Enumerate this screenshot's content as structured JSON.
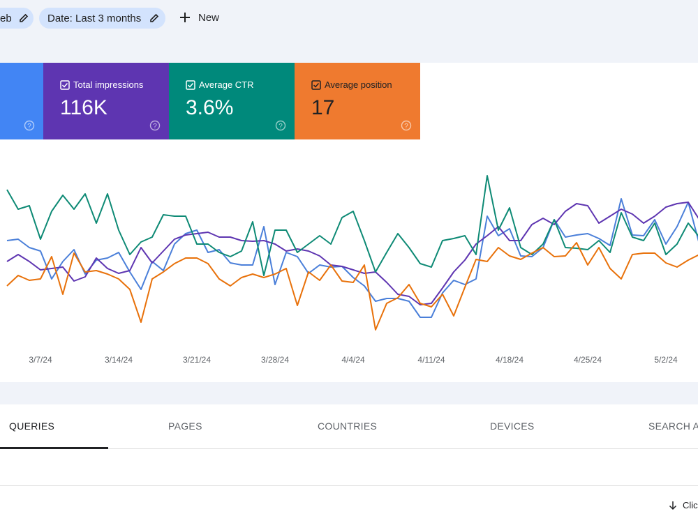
{
  "filters": [
    "eb",
    "Date: Last 3 months"
  ],
  "new_button": "New",
  "metrics": [
    {
      "label": "Total impressions",
      "value": "116K"
    },
    {
      "label": "Average CTR",
      "value": "3.6%"
    },
    {
      "label": "Average position",
      "value": "17"
    }
  ],
  "chart_data": {
    "type": "line",
    "categories": [
      null,
      null,
      null,
      "3/7/24",
      null,
      null,
      null,
      null,
      null,
      null,
      "3/14/24",
      null,
      null,
      null,
      null,
      null,
      null,
      "3/21/24",
      null,
      null,
      null,
      null,
      null,
      null,
      "3/28/24",
      null,
      null,
      null,
      null,
      null,
      null,
      "4/4/24",
      null,
      null,
      null,
      null,
      null,
      null,
      "4/11/24",
      null,
      null,
      null,
      null,
      null,
      null,
      "4/18/24",
      null,
      null,
      null,
      null,
      null,
      null,
      "4/25/24",
      null,
      null,
      null,
      null,
      null,
      null,
      "5/2/24",
      null,
      null,
      null
    ],
    "ylim": [
      0,
      270
    ],
    "series": [
      {
        "color": "#4a7fd9",
        "values": [
          155,
          157,
          145,
          140,
          100,
          125,
          142,
          107,
          127,
          130,
          138,
          110,
          85,
          125,
          112,
          150,
          165,
          170,
          138,
          142,
          123,
          120,
          120,
          175,
          92,
          138,
          132,
          108,
          120,
          117,
          118,
          102,
          90,
          68,
          72,
          72,
          68,
          45,
          45,
          80,
          98,
          92,
          100,
          190,
          162,
          172,
          133,
          132,
          145,
          185,
          160,
          163,
          165,
          158,
          148,
          215,
          163,
          162,
          185,
          150,
          175,
          210,
          150
        ]
      },
      {
        "color": "#5e35b1",
        "values": [
          125,
          135,
          125,
          113,
          115,
          117,
          97,
          103,
          130,
          115,
          108,
          112,
          145,
          123,
          140,
          157,
          163,
          165,
          167,
          160,
          160,
          155,
          154,
          155,
          150,
          140,
          143,
          140,
          133,
          120,
          118,
          113,
          108,
          110,
          95,
          78,
          75,
          63,
          65,
          87,
          110,
          127,
          150,
          162,
          175,
          155,
          155,
          178,
          187,
          178,
          197,
          208,
          205,
          180,
          190,
          200,
          193,
          180,
          190,
          203,
          208,
          210,
          185
        ]
      },
      {
        "color": "#0e8a75",
        "values": [
          228,
          200,
          205,
          157,
          197,
          220,
          200,
          222,
          180,
          222,
          170,
          135,
          153,
          160,
          192,
          190,
          190,
          150,
          150,
          138,
          132,
          140,
          182,
          105,
          170,
          170,
          138,
          150,
          162,
          150,
          188,
          197,
          155,
          110,
          138,
          165,
          145,
          122,
          117,
          155,
          158,
          162,
          135,
          248,
          170,
          202,
          145,
          135,
          150,
          185,
          145,
          144,
          142,
          155,
          138,
          195,
          160,
          155,
          180,
          135,
          150,
          180,
          160
        ]
      },
      {
        "color": "#e8710a",
        "values": [
          90,
          105,
          98,
          100,
          132,
          78,
          137,
          110,
          112,
          107,
          100,
          85,
          38,
          100,
          110,
          122,
          130,
          130,
          122,
          100,
          90,
          102,
          107,
          102,
          107,
          115,
          62,
          110,
          98,
          120,
          97,
          95,
          120,
          27,
          65,
          73,
          92,
          65,
          60,
          78,
          47,
          88,
          128,
          125,
          145,
          133,
          128,
          137,
          145,
          132,
          133,
          152,
          120,
          145,
          115,
          100,
          135,
          137,
          137,
          123,
          117,
          127,
          135
        ]
      }
    ]
  },
  "tabs": [
    "QUERIES",
    "PAGES",
    "COUNTRIES",
    "DEVICES",
    "SEARCH AP"
  ],
  "sort_label": "Clic"
}
